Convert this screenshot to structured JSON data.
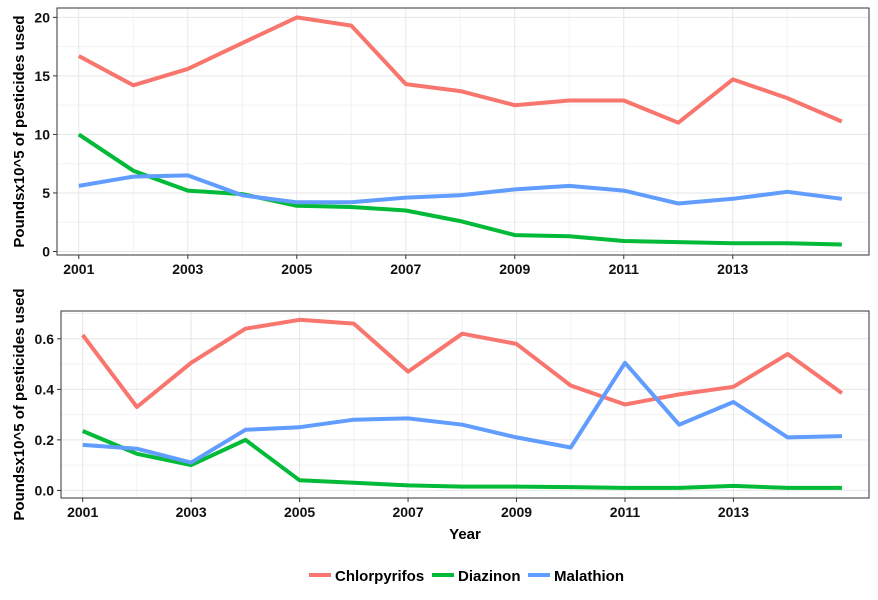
{
  "chart_data": [
    {
      "type": "line",
      "xlabel": "",
      "ylabel": "Poundsx10^5 of pesticides used",
      "xlim": [
        2000.6,
        2015.5
      ],
      "ylim": [
        -0.3,
        20.8
      ],
      "x_ticks": [
        2001,
        2003,
        2005,
        2007,
        2009,
        2011,
        2013
      ],
      "x_tick_labels": [
        "2001",
        "2003",
        "2005",
        "2007",
        "2009",
        "2011",
        "2013"
      ],
      "y_ticks": [
        0,
        5,
        10,
        15,
        20
      ],
      "y_tick_labels": [
        "0",
        "5",
        "10",
        "15",
        "20"
      ],
      "grid": true,
      "x": [
        2001,
        2002,
        2003,
        2004,
        2005,
        2006,
        2007,
        2008,
        2009,
        2010,
        2011,
        2012,
        2013,
        2014,
        2015
      ],
      "series": [
        {
          "name": "Chlorpyrifos",
          "color": "#F8766D",
          "values": [
            16.7,
            14.2,
            15.6,
            17.8,
            20.0,
            19.3,
            14.3,
            13.7,
            12.5,
            12.9,
            12.9,
            11.0,
            14.7,
            13.1,
            11.1
          ]
        },
        {
          "name": "Diazinon",
          "color": "#00BA38",
          "values": [
            10.0,
            6.9,
            5.2,
            4.9,
            3.9,
            3.8,
            3.5,
            2.6,
            1.4,
            1.3,
            0.9,
            0.8,
            0.7,
            0.7,
            0.6
          ]
        },
        {
          "name": "Malathion",
          "color": "#619CFF",
          "values": [
            5.6,
            6.4,
            6.5,
            4.8,
            4.2,
            4.2,
            4.6,
            4.8,
            5.3,
            5.6,
            5.2,
            4.1,
            4.5,
            5.1,
            4.5
          ]
        }
      ]
    },
    {
      "type": "line",
      "xlabel": "Year",
      "ylabel": "Poundsx10^5 of pesticides used",
      "xlim": [
        2000.6,
        2015.5
      ],
      "ylim": [
        -0.03,
        0.71
      ],
      "x_ticks": [
        2001,
        2003,
        2005,
        2007,
        2009,
        2011,
        2013
      ],
      "x_tick_labels": [
        "2001",
        "2003",
        "2005",
        "2007",
        "2009",
        "2011",
        "2013"
      ],
      "y_ticks": [
        0.0,
        0.2,
        0.4,
        0.6
      ],
      "y_tick_labels": [
        "0.0",
        "0.2",
        "0.4",
        "0.6"
      ],
      "grid": true,
      "x": [
        2001,
        2002,
        2003,
        2004,
        2005,
        2006,
        2007,
        2008,
        2009,
        2010,
        2011,
        2012,
        2013,
        2014,
        2015
      ],
      "series": [
        {
          "name": "Chlorpyrifos",
          "color": "#F8766D",
          "values": [
            0.615,
            0.33,
            0.505,
            0.64,
            0.675,
            0.66,
            0.47,
            0.62,
            0.58,
            0.415,
            0.34,
            0.38,
            0.41,
            0.54,
            0.385
          ]
        },
        {
          "name": "Diazinon",
          "color": "#00BA38",
          "values": [
            0.235,
            0.145,
            0.1,
            0.2,
            0.04,
            0.03,
            0.02,
            0.015,
            0.015,
            0.013,
            0.01,
            0.01,
            0.018,
            0.01,
            0.01
          ]
        },
        {
          "name": "Malathion",
          "color": "#619CFF",
          "values": [
            0.18,
            0.165,
            0.11,
            0.24,
            0.25,
            0.28,
            0.285,
            0.26,
            0.21,
            0.17,
            0.505,
            0.26,
            0.35,
            0.21,
            0.215
          ]
        }
      ]
    }
  ],
  "legend": {
    "position": "bottom",
    "items": [
      {
        "label": "Chlorpyrifos",
        "color": "#F8766D"
      },
      {
        "label": "Diazinon",
        "color": "#00BA38"
      },
      {
        "label": "Malathion",
        "color": "#619CFF"
      }
    ]
  }
}
